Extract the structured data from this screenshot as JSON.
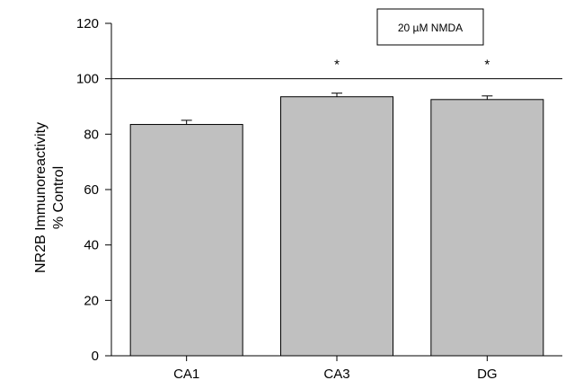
{
  "chart_data": {
    "type": "bar",
    "categories": [
      "CA1",
      "CA3",
      "DG"
    ],
    "values": [
      83.5,
      93.5,
      92.5
    ],
    "errors": [
      1.5,
      1.3,
      1.3
    ],
    "significance": [
      "",
      "*",
      "*"
    ],
    "ylabel_lines": [
      "NR2B Immunoreactivity",
      "% Control"
    ],
    "xlabel": "",
    "ylim": [
      0,
      120
    ],
    "yticks": [
      0,
      20,
      40,
      60,
      80,
      100,
      120
    ],
    "reference_line": 100,
    "legend_label": "20  µM NMDA",
    "legend_placement": "top-center",
    "bar_color": "#c0c0c0",
    "grid": false
  }
}
